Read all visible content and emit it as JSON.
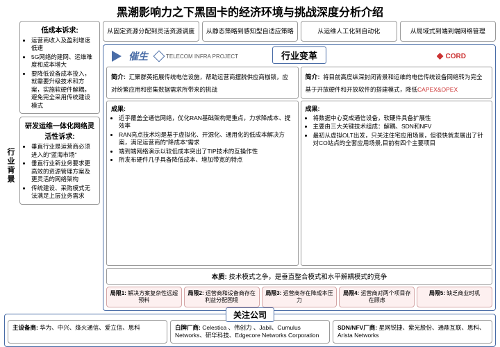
{
  "title": "黑潮影响力之下黑固卡的经济环境与挑战深度分析介绍",
  "leftTag": "行业背景",
  "demand1": {
    "title": "低成本诉求:",
    "items": [
      "运营商收入及盈利增速低速",
      "5G网络的建网、运维难度和成本增大",
      "要降低设备成本投入，就需要升级技术和方案，实施软硬件解耦，避免完全采用传统建设模式"
    ]
  },
  "demand2": {
    "title": "研发运维一体化网络灵活性诉求:",
    "items": [
      "垂直行业是运营商必须进入的\"蓝海市场\"",
      "垂直行业新业务要求更高效的资源管理方案及更灵活的网络架构",
      "传统建设、采购模式无法满足上层业务需求"
    ]
  },
  "trends": [
    {
      "t": "从固定资源分配到灵活资源调度"
    },
    {
      "t": "从静态策略到感知型自适应策略"
    },
    {
      "t": "从运维人工化到自动化"
    },
    {
      "t": "从局域式到端到端网络管理"
    }
  ],
  "cuisheng": "催生",
  "transformLabel": "行业变革",
  "tipLogo": "TELECOM INFRA PROJECT",
  "cordLogo": "CORD",
  "tip": {
    "intro": {
      "h": "简介:",
      "t": "汇聚群英拓展传统电信设施，帮助运营商摆脱供应商枷锁，应对纷繁应用和密集数据需求所带来的挑战"
    },
    "result": {
      "h": "成果:",
      "items": [
        "近乎覆盖全通信网络，优化RAN基础架构是重点，力求降成本、提效率",
        "RAN亮点技术均是基于虚拟化、开源化、通用化的低成本解决方案，满足运营商的\"降成本\"需求",
        "端到端网络演示以较低成本突出了TIP技术的互操作性",
        "所发布硬件几乎具备降低成本、增加带宽的特点"
      ]
    }
  },
  "cord": {
    "intro": {
      "h": "简介:",
      "t": "将目前高度纵深封闭背景和运维的电信传统设备网络转为完全基于开放硬件和开放软件的搭建模式，降低",
      "red": "CAPEX&OPEX"
    },
    "result": {
      "h": "成果:",
      "items": [
        "将数据中心变成通信设备，软硬件具备扩展性",
        "主要由三大关键技术组成：解耦、SDN和NFV",
        "最初从虚拟OLT出发，只关注住宅应用场景，但很快就发展出了针对CO站点的全套应用场景,目前有四个主要项目"
      ]
    }
  },
  "essence": {
    "h": "本质:",
    "t": "技术模式之争，是垂直整合模式和水平解耦模式的竞争"
  },
  "limits": [
    {
      "h": "局限1:",
      "t": "解决方案复杂性远超预料"
    },
    {
      "h": "局限2:",
      "t": "运营商和设备商存在利益分配困境"
    },
    {
      "h": "局限3:",
      "t": "运营商存在降成本压力"
    },
    {
      "h": "局限4:",
      "t": "运营商对两个项目存在顾虑"
    },
    {
      "h": "局限5:",
      "t": "缺乏商业时机"
    }
  ],
  "companiesLabel": "关注公司",
  "vendors": [
    {
      "h": "主设备商:",
      "t": "华为、中兴、烽火通信、爱立信、思科"
    },
    {
      "h": "白牌厂商:",
      "t": "Celestica 、伟创力 、Jabil、Cumulus Networks、研华科技、Edgecore Networks Corporation"
    },
    {
      "h": "SDN/NFV厂商:",
      "t": "星网锐捷、紫光股份、通鼎互联、思科、Arista Networks"
    }
  ],
  "colors": {
    "blue": "#4a6da7",
    "gray": "#999",
    "pink": "#fdf0f0",
    "red": "#c33"
  }
}
